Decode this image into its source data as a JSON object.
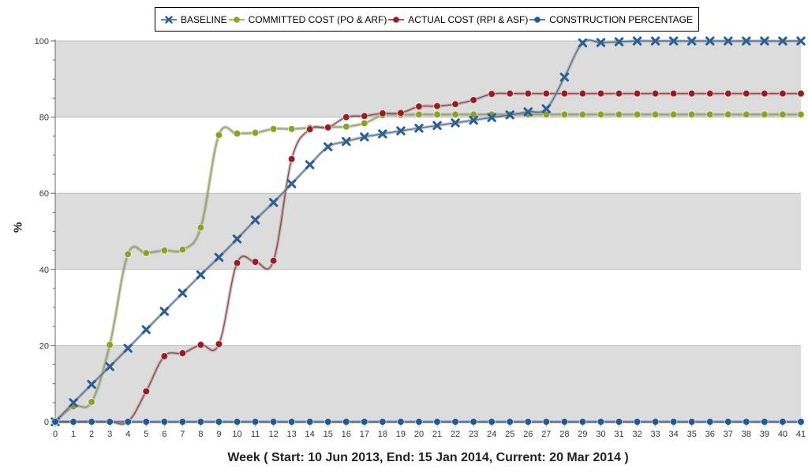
{
  "chart_data": {
    "type": "line",
    "xlabel": "Week ( Start: 10 Jun 2013, End: 15 Jan 2014, Current: 20 Mar 2014 )",
    "ylabel": "%",
    "ylim": [
      0,
      100
    ],
    "yticks": [
      0,
      20,
      40,
      60,
      80,
      100
    ],
    "x": [
      0,
      1,
      2,
      3,
      4,
      5,
      6,
      7,
      8,
      9,
      10,
      11,
      12,
      13,
      14,
      15,
      16,
      17,
      18,
      19,
      20,
      21,
      22,
      23,
      24,
      25,
      26,
      27,
      28,
      29,
      30,
      31,
      32,
      33,
      34,
      35,
      36,
      37,
      38,
      39,
      40,
      41
    ],
    "grid": "alternating horizontal bands",
    "legend_position": "top-center",
    "series": [
      {
        "name": "BASELINE",
        "color": "#2a5f96",
        "marker": "cross-x-icon",
        "values": [
          0,
          5,
          9.8,
          14.5,
          19.3,
          24.2,
          29,
          33.8,
          38.6,
          43.2,
          48,
          53,
          57.6,
          62.5,
          67.5,
          72.2,
          73.6,
          74.8,
          75.6,
          76.4,
          77.1,
          77.8,
          78.5,
          79.2,
          79.9,
          80.6,
          81.4,
          82.2,
          90.5,
          99.5,
          99.6,
          99.8,
          100,
          100,
          100,
          100,
          100,
          100,
          100,
          100,
          100,
          100
        ]
      },
      {
        "name": "COMMITTED COST (PO & ARF)",
        "color": "#8aa323",
        "marker": "dot-icon",
        "values": [
          0,
          4,
          5.2,
          20.2,
          44,
          44.3,
          45,
          45.2,
          51,
          75.3,
          75.7,
          75.9,
          76.9,
          76.9,
          77.2,
          77.4,
          77.5,
          78.4,
          80.5,
          80.6,
          80.7,
          80.7,
          80.7,
          80.7,
          80.7,
          80.7,
          80.7,
          80.7,
          80.7,
          80.7,
          80.7,
          80.7,
          80.7,
          80.7,
          80.7,
          80.7,
          80.7,
          80.7,
          80.7,
          80.7,
          80.7,
          80.7
        ]
      },
      {
        "name": "ACTUAL COST (RPI & ASF)",
        "color": "#9b1c20",
        "marker": "dot-icon",
        "values": [
          0,
          0,
          0,
          0,
          0,
          8,
          17.2,
          18,
          20.2,
          20.4,
          41.7,
          42,
          42.3,
          69,
          76.8,
          77.3,
          80,
          80.3,
          81,
          81.1,
          82.8,
          82.9,
          83.4,
          84.5,
          86.1,
          86.2,
          86.2,
          86.2,
          86.2,
          86.2,
          86.2,
          86.2,
          86.2,
          86.2,
          86.2,
          86.2,
          86.2,
          86.2,
          86.2,
          86.2,
          86.2,
          86.2
        ]
      },
      {
        "name": "CONSTRUCTION PERCENTAGE",
        "color": "#1f5a95",
        "marker": "dot-icon",
        "values": [
          0,
          0,
          0,
          0,
          0,
          0,
          0,
          0,
          0,
          0,
          0,
          0,
          0,
          0,
          0,
          0,
          0,
          0,
          0,
          0,
          0,
          0,
          0,
          0,
          0,
          0,
          0,
          0,
          0,
          0,
          0,
          0,
          0,
          0,
          0,
          0,
          0,
          0,
          0,
          0,
          0,
          0
        ]
      }
    ]
  }
}
